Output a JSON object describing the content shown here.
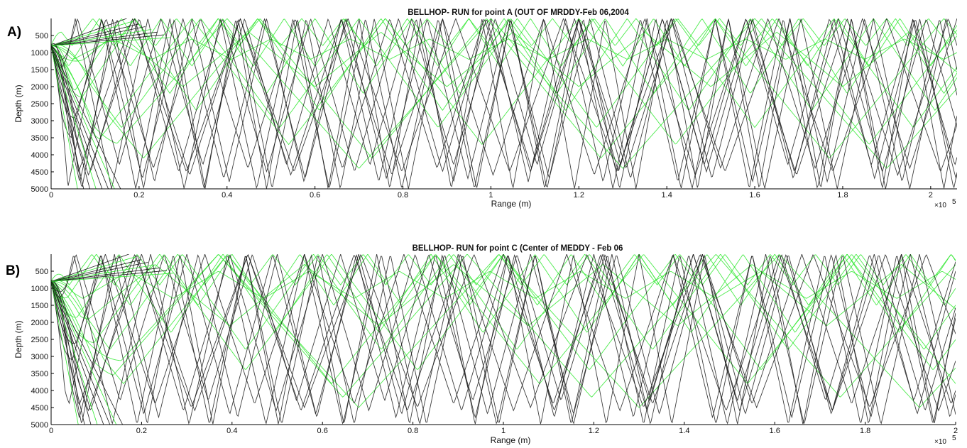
{
  "panel_labels": [
    "A)",
    "B)"
  ],
  "colors": {
    "green_rays": "#2ee82e",
    "black_rays": "#1a1a1a",
    "axis": "#000000"
  },
  "chart_data": [
    {
      "type": "line",
      "title": "BELLHOP- RUN for point A (OUT OF MRDDY-Feb 06,2004",
      "xlabel": "Range (m)",
      "ylabel": "Depth (m)",
      "x_exponent_base": "×10",
      "x_exponent_power": "5",
      "xlim": [
        0,
        206000
      ],
      "ylim": [
        5000,
        0
      ],
      "y_inverted": true,
      "x_ticks": [
        0,
        20000,
        40000,
        60000,
        80000,
        100000,
        120000,
        140000,
        160000,
        180000,
        200000
      ],
      "x_tick_labels": [
        "0",
        "0.2",
        "0.4",
        "0.6",
        "0.8",
        "1",
        "1.2",
        "1.4",
        "1.6",
        "1.8",
        "2"
      ],
      "y_ticks": [
        500,
        1000,
        1500,
        2000,
        2500,
        3000,
        3500,
        4000,
        4500,
        5000
      ],
      "y_tick_labels": [
        "500",
        "1000",
        "1500",
        "2000",
        "2500",
        "3000",
        "3500",
        "4000",
        "4500",
        "5000"
      ],
      "grid": false,
      "source_depth": 800,
      "series": [
        {
          "color": "green",
          "rays": [
            {
              "period": 9500,
              "top": 0,
              "bottom": 800,
              "phase": 0
            },
            {
              "period": 14000,
              "top": 0,
              "bottom": 1400,
              "phase": 3000
            },
            {
              "period": 22000,
              "top": 0,
              "bottom": 2200,
              "phase": 6000
            },
            {
              "period": 28000,
              "top": 0,
              "bottom": 2700,
              "phase": 9000
            },
            {
              "period": 36000,
              "top": 0,
              "bottom": 3200,
              "phase": 2000
            },
            {
              "period": 44000,
              "top": 0,
              "bottom": 3700,
              "phase": 12000
            },
            {
              "period": 52000,
              "top": 0,
              "bottom": 4100,
              "phase": 5000
            },
            {
              "period": 18000,
              "top": 600,
              "bottom": 1200,
              "phase": 4000
            },
            {
              "period": 30000,
              "top": 400,
              "bottom": 2000,
              "phase": 15000
            },
            {
              "period": 60000,
              "top": 0,
              "bottom": 4400,
              "phase": 20000
            }
          ]
        },
        {
          "color": "black",
          "rays": [
            {
              "period": 14000,
              "top": 0,
              "bottom": 5000,
              "phase": 0
            },
            {
              "period": 15500,
              "top": 0,
              "bottom": 5000,
              "phase": 4000
            },
            {
              "period": 17000,
              "top": 0,
              "bottom": 4800,
              "phase": 2000
            },
            {
              "period": 18500,
              "top": 0,
              "bottom": 4700,
              "phase": 7000
            },
            {
              "period": 20000,
              "top": 0,
              "bottom": 4500,
              "phase": 1000
            },
            {
              "period": 21500,
              "top": 0,
              "bottom": 4400,
              "phase": 9000
            },
            {
              "period": 23000,
              "top": 0,
              "bottom": 4600,
              "phase": 3000
            },
            {
              "period": 16500,
              "top": 0,
              "bottom": 5000,
              "phase": 11000
            },
            {
              "period": 19000,
              "top": 0,
              "bottom": 4300,
              "phase": 13000
            },
            {
              "period": 24500,
              "top": 0,
              "bottom": 4500,
              "phase": 6000
            }
          ]
        }
      ]
    },
    {
      "type": "line",
      "title": "BELLHOP- RUN for point C (Center of MEDDY - Feb 06",
      "xlabel": "Range (m)",
      "ylabel": "Depth (m)",
      "x_exponent_base": "×10",
      "x_exponent_power": "5",
      "xlim": [
        0,
        200000
      ],
      "ylim": [
        5000,
        0
      ],
      "y_inverted": true,
      "x_ticks": [
        0,
        20000,
        40000,
        60000,
        80000,
        100000,
        120000,
        140000,
        160000,
        180000,
        200000
      ],
      "x_tick_labels": [
        "0",
        "0.2",
        "0.4",
        "0.6",
        "0.8",
        "1",
        "1.2",
        "1.4",
        "1.6",
        "1.8",
        "2"
      ],
      "y_ticks": [
        500,
        1000,
        1500,
        2000,
        2500,
        3000,
        3500,
        4000,
        4500,
        5000
      ],
      "y_tick_labels": [
        "500",
        "1000",
        "1500",
        "2000",
        "2500",
        "3000",
        "3500",
        "4000",
        "4500",
        "5000"
      ],
      "grid": false,
      "source_depth": 800,
      "series": [
        {
          "color": "green",
          "rays": [
            {
              "period": 10000,
              "top": 0,
              "bottom": 900,
              "phase": 1000
            },
            {
              "period": 15000,
              "top": 0,
              "bottom": 1500,
              "phase": 5000
            },
            {
              "period": 23000,
              "top": 0,
              "bottom": 2300,
              "phase": 8000
            },
            {
              "period": 30000,
              "top": 0,
              "bottom": 2800,
              "phase": 2000
            },
            {
              "period": 38000,
              "top": 0,
              "bottom": 3400,
              "phase": 14000
            },
            {
              "period": 46000,
              "top": 0,
              "bottom": 3800,
              "phase": 7000
            },
            {
              "period": 55000,
              "top": 0,
              "bottom": 4200,
              "phase": 18000
            },
            {
              "period": 20000,
              "top": 500,
              "bottom": 1300,
              "phase": 3000
            },
            {
              "period": 33000,
              "top": 300,
              "bottom": 2100,
              "phase": 10000
            },
            {
              "period": 62000,
              "top": 0,
              "bottom": 4500,
              "phase": 25000
            }
          ]
        },
        {
          "color": "black",
          "rays": [
            {
              "period": 14500,
              "top": 0,
              "bottom": 5000,
              "phase": 500
            },
            {
              "period": 16000,
              "top": 0,
              "bottom": 5000,
              "phase": 5000
            },
            {
              "period": 17500,
              "top": 0,
              "bottom": 4800,
              "phase": 2500
            },
            {
              "period": 19000,
              "top": 0,
              "bottom": 4700,
              "phase": 8000
            },
            {
              "period": 20500,
              "top": 0,
              "bottom": 4600,
              "phase": 1500
            },
            {
              "period": 22000,
              "top": 0,
              "bottom": 4400,
              "phase": 10000
            },
            {
              "period": 23500,
              "top": 0,
              "bottom": 4600,
              "phase": 3500
            },
            {
              "period": 17000,
              "top": 0,
              "bottom": 5000,
              "phase": 12000
            },
            {
              "period": 19500,
              "top": 0,
              "bottom": 4300,
              "phase": 14000
            },
            {
              "period": 25000,
              "top": 0,
              "bottom": 4500,
              "phase": 6500
            }
          ]
        }
      ]
    }
  ]
}
